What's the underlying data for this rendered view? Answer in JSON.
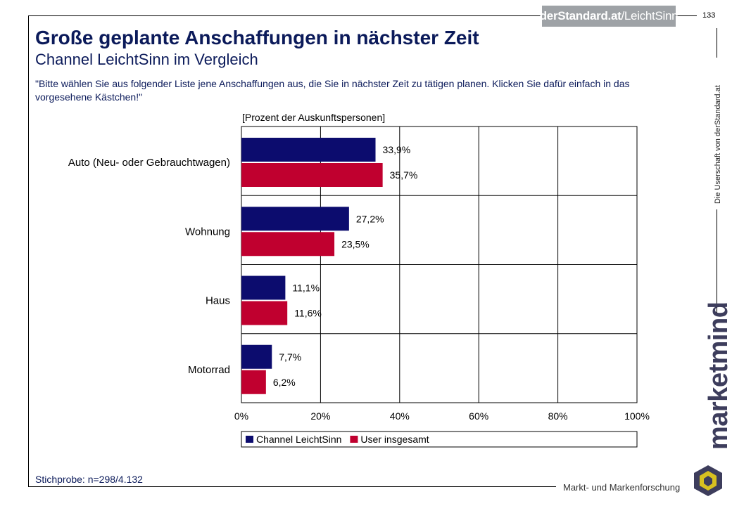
{
  "header": {
    "logo_bold": "derStandard.at",
    "logo_thin": "/LeichtSinn",
    "page_number": "133"
  },
  "title": "Große geplante Anschaffungen in nächster Zeit",
  "subtitle": "Channel LeichtSinn im Vergleich",
  "question": "\"Bitte wählen Sie aus folgender Liste jene Anschaffungen aus, die Sie in nächster Zeit zu tätigen planen. Klicken Sie dafür einfach in das vorgesehene Kästchen!\"",
  "sample": "Stichprobe: n=298/4.132",
  "side_text": "Die Userschaft von derStandard.at",
  "brand": {
    "name": "marketmind",
    "tagline": "Markt- und Markenforschung"
  },
  "colors": {
    "series1": "#0c0c6e",
    "series2": "#c0002f",
    "title": "#0b1a5a"
  },
  "chart_data": {
    "type": "bar",
    "orientation": "horizontal",
    "unit_label": "[Prozent der Auskunftspersonen]",
    "categories": [
      "Auto (Neu- oder Gebrauchtwagen)",
      "Wohnung",
      "Haus",
      "Motorrad"
    ],
    "series": [
      {
        "name": "Channel LeichtSinn",
        "values": [
          33.9,
          27.2,
          11.1,
          7.7
        ],
        "labels": [
          "33,9%",
          "27,2%",
          "11,1%",
          "7,7%"
        ]
      },
      {
        "name": "User insgesamt",
        "values": [
          35.7,
          23.5,
          11.6,
          6.2
        ],
        "labels": [
          "35,7%",
          "23,5%",
          "11,6%",
          "6,2%"
        ]
      }
    ],
    "xlim": [
      0,
      100
    ],
    "xticks": [
      "0%",
      "20%",
      "40%",
      "60%",
      "80%",
      "100%"
    ],
    "grid": true,
    "legend_position": "bottom"
  }
}
